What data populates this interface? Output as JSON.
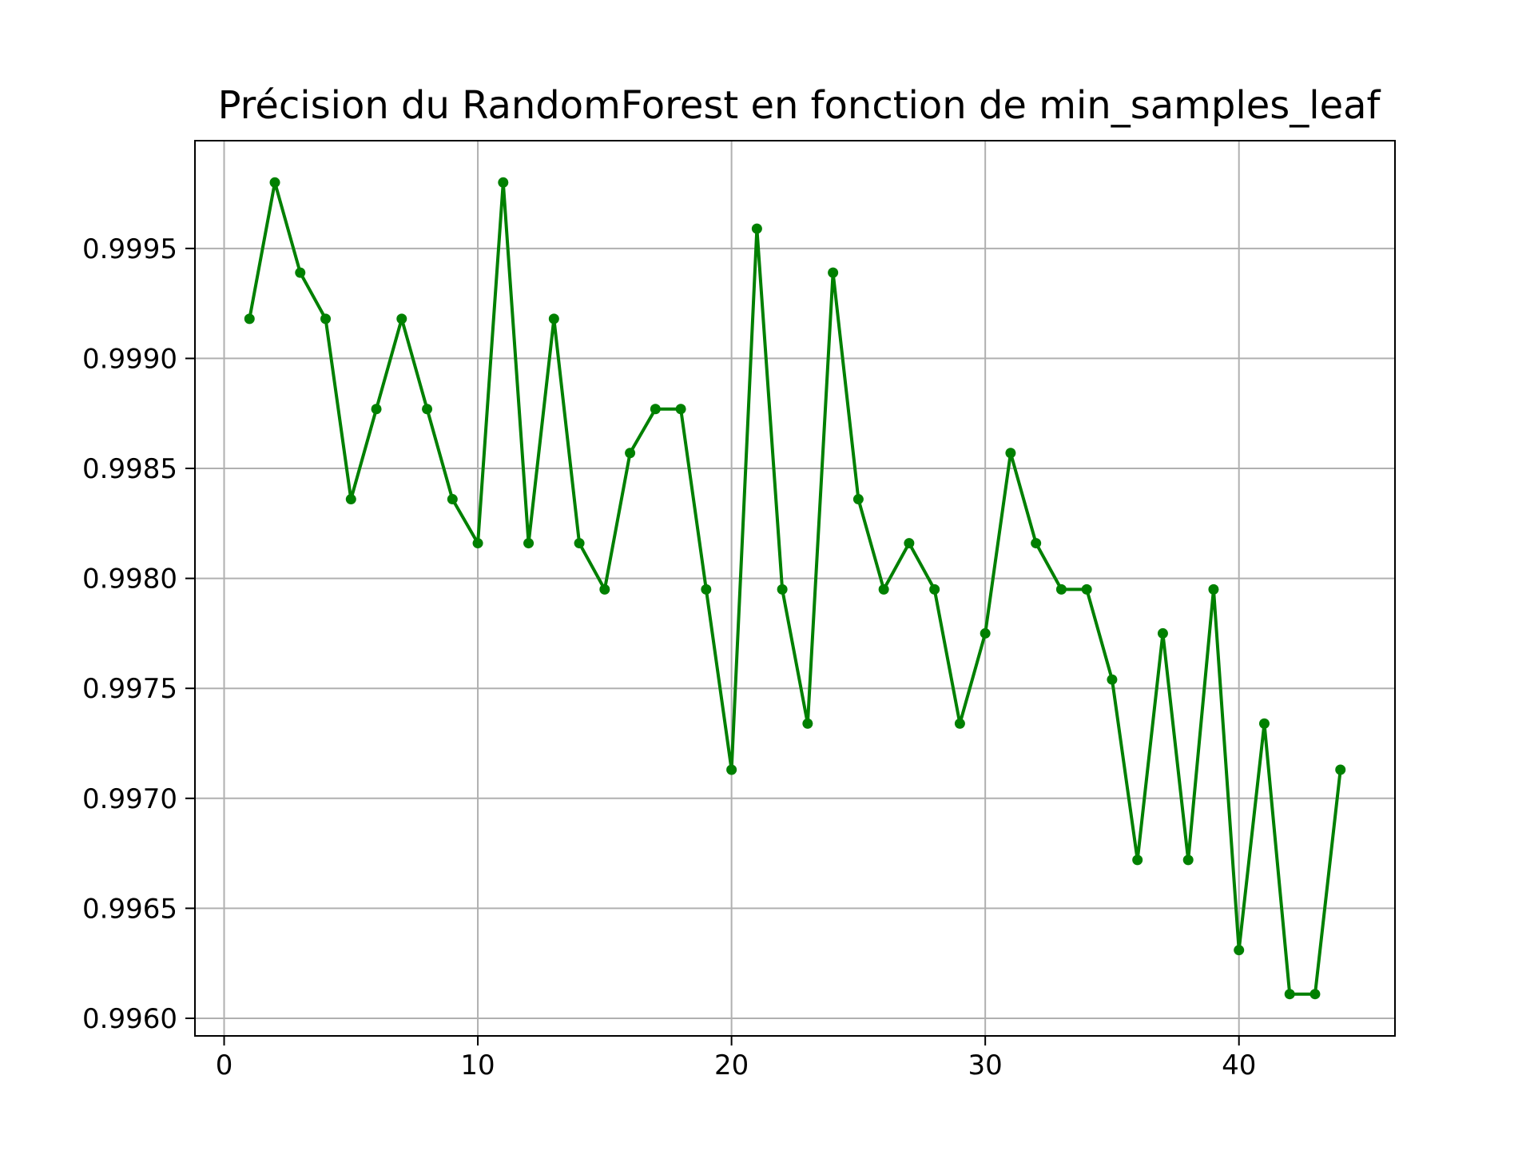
{
  "chart_data": {
    "type": "line",
    "title": "Précision du RandomForest en fonction de min_samples_leaf",
    "xlabel": "",
    "ylabel": "",
    "x": [
      1,
      2,
      3,
      4,
      5,
      6,
      7,
      8,
      9,
      10,
      11,
      12,
      13,
      14,
      15,
      16,
      17,
      18,
      19,
      20,
      21,
      22,
      23,
      24,
      25,
      26,
      27,
      28,
      29,
      30,
      31,
      32,
      33,
      34,
      35,
      36,
      37,
      38,
      39,
      40,
      41,
      42,
      43,
      44
    ],
    "series": [
      {
        "values": [
          0.99918,
          0.9998,
          0.99939,
          0.99918,
          0.99836,
          0.99877,
          0.99918,
          0.99877,
          0.99836,
          0.99816,
          0.9998,
          0.99816,
          0.99918,
          0.99816,
          0.99795,
          0.99857,
          0.99877,
          0.99877,
          0.99795,
          0.99713,
          0.99959,
          0.99795,
          0.99734,
          0.99939,
          0.99836,
          0.99795,
          0.99816,
          0.99795,
          0.99734,
          0.99775,
          0.99857,
          0.99816,
          0.99795,
          0.99795,
          0.99754,
          0.99672,
          0.99775,
          0.99672,
          0.99795,
          0.99631,
          0.99734,
          0.99611,
          0.99611,
          0.99713
        ],
        "color": "#008000"
      }
    ],
    "xlim": [
      -1.15,
      46.15
    ],
    "ylim": [
      0.99592,
      0.99999
    ],
    "xticks": [
      0,
      10,
      20,
      30,
      40
    ],
    "xtick_labels": [
      "0",
      "10",
      "20",
      "30",
      "40"
    ],
    "yticks": [
      0.996,
      0.9965,
      0.997,
      0.9975,
      0.998,
      0.9985,
      0.999,
      0.9995
    ],
    "ytick_labels": [
      "0.9960",
      "0.9965",
      "0.9970",
      "0.9975",
      "0.9980",
      "0.9985",
      "0.9990",
      "0.9995"
    ],
    "grid": true,
    "marker": "circle",
    "grid_color": "#b0b0b0",
    "axis_color": "#000000"
  }
}
